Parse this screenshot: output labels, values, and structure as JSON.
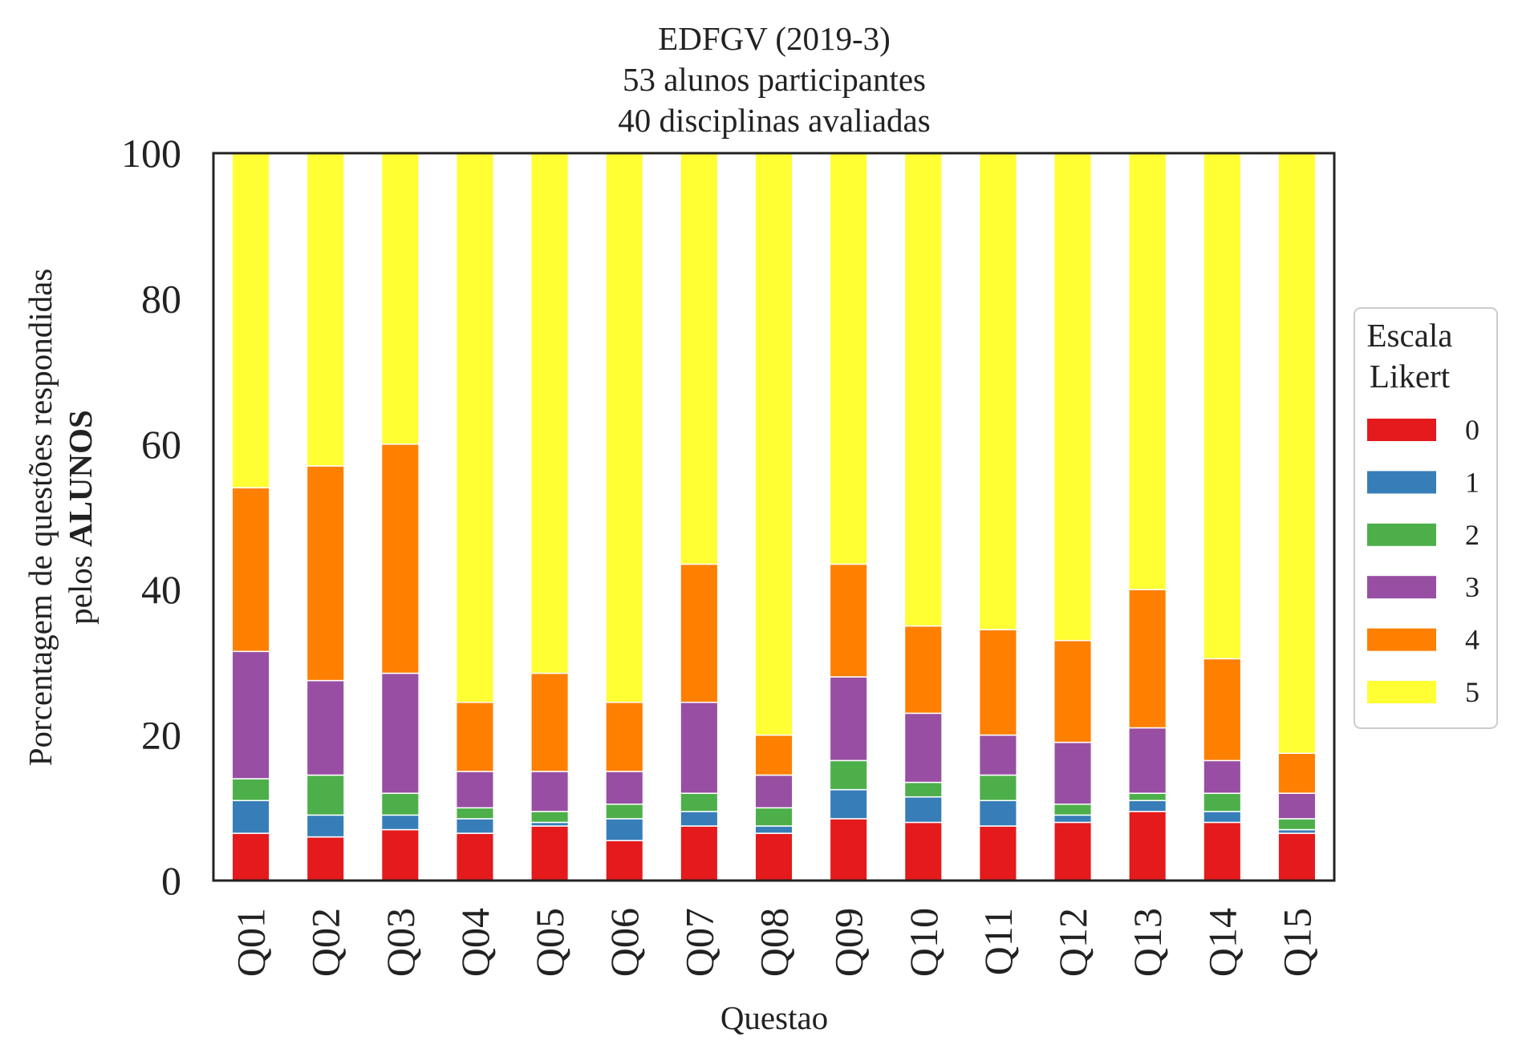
{
  "chart_data": {
    "type": "bar",
    "stacked": true,
    "title_lines": [
      "EDFGV (2019-3)",
      "53 alunos participantes",
      "40 disciplinas avaliadas"
    ],
    "xlabel": "Questao",
    "ylabel_line1": "Porcentagem de questões respondidas",
    "ylabel_line2_prefix": "pelos ",
    "ylabel_line2_bold": "ALUNOS",
    "ylim": [
      0,
      100
    ],
    "yticks": [
      "0",
      "20",
      "40",
      "60",
      "80",
      "100"
    ],
    "grid": false,
    "legend_title_lines": [
      "Escala",
      "Likert"
    ],
    "legend_position": "center-right",
    "categories": [
      "Q01",
      "Q02",
      "Q03",
      "Q04",
      "Q05",
      "Q06",
      "Q07",
      "Q08",
      "Q09",
      "Q10",
      "Q11",
      "Q12",
      "Q13",
      "Q14",
      "Q15"
    ],
    "series": [
      {
        "name": "0",
        "color": "#e41a1c",
        "values": [
          6.5,
          6.0,
          7.0,
          6.5,
          7.5,
          5.5,
          7.5,
          6.5,
          8.5,
          8.0,
          7.5,
          8.0,
          9.5,
          8.0,
          6.5
        ]
      },
      {
        "name": "1",
        "color": "#377eb8",
        "values": [
          4.5,
          3.0,
          2.0,
          2.0,
          0.5,
          3.0,
          2.0,
          1.0,
          4.0,
          3.5,
          3.5,
          1.0,
          1.5,
          1.5,
          0.5
        ]
      },
      {
        "name": "2",
        "color": "#4daf4a",
        "values": [
          3.0,
          5.5,
          3.0,
          1.5,
          1.5,
          2.0,
          2.5,
          2.5,
          4.0,
          2.0,
          3.5,
          1.5,
          1.0,
          2.5,
          1.5
        ]
      },
      {
        "name": "3",
        "color": "#984ea3",
        "values": [
          17.5,
          13.0,
          16.5,
          5.0,
          5.5,
          4.5,
          12.5,
          4.5,
          11.5,
          9.5,
          5.5,
          8.5,
          9.0,
          4.5,
          3.5
        ]
      },
      {
        "name": "4",
        "color": "#ff7f00",
        "values": [
          22.5,
          29.5,
          31.5,
          9.5,
          13.5,
          9.5,
          19.0,
          5.5,
          15.5,
          12.0,
          14.5,
          14.0,
          19.0,
          14.0,
          5.5
        ]
      },
      {
        "name": "5",
        "color": "#ffff33",
        "values": [
          46.0,
          43.0,
          40.0,
          75.5,
          71.5,
          75.5,
          56.5,
          80.0,
          56.5,
          65.0,
          65.5,
          67.0,
          60.0,
          69.5,
          82.5
        ]
      }
    ]
  }
}
